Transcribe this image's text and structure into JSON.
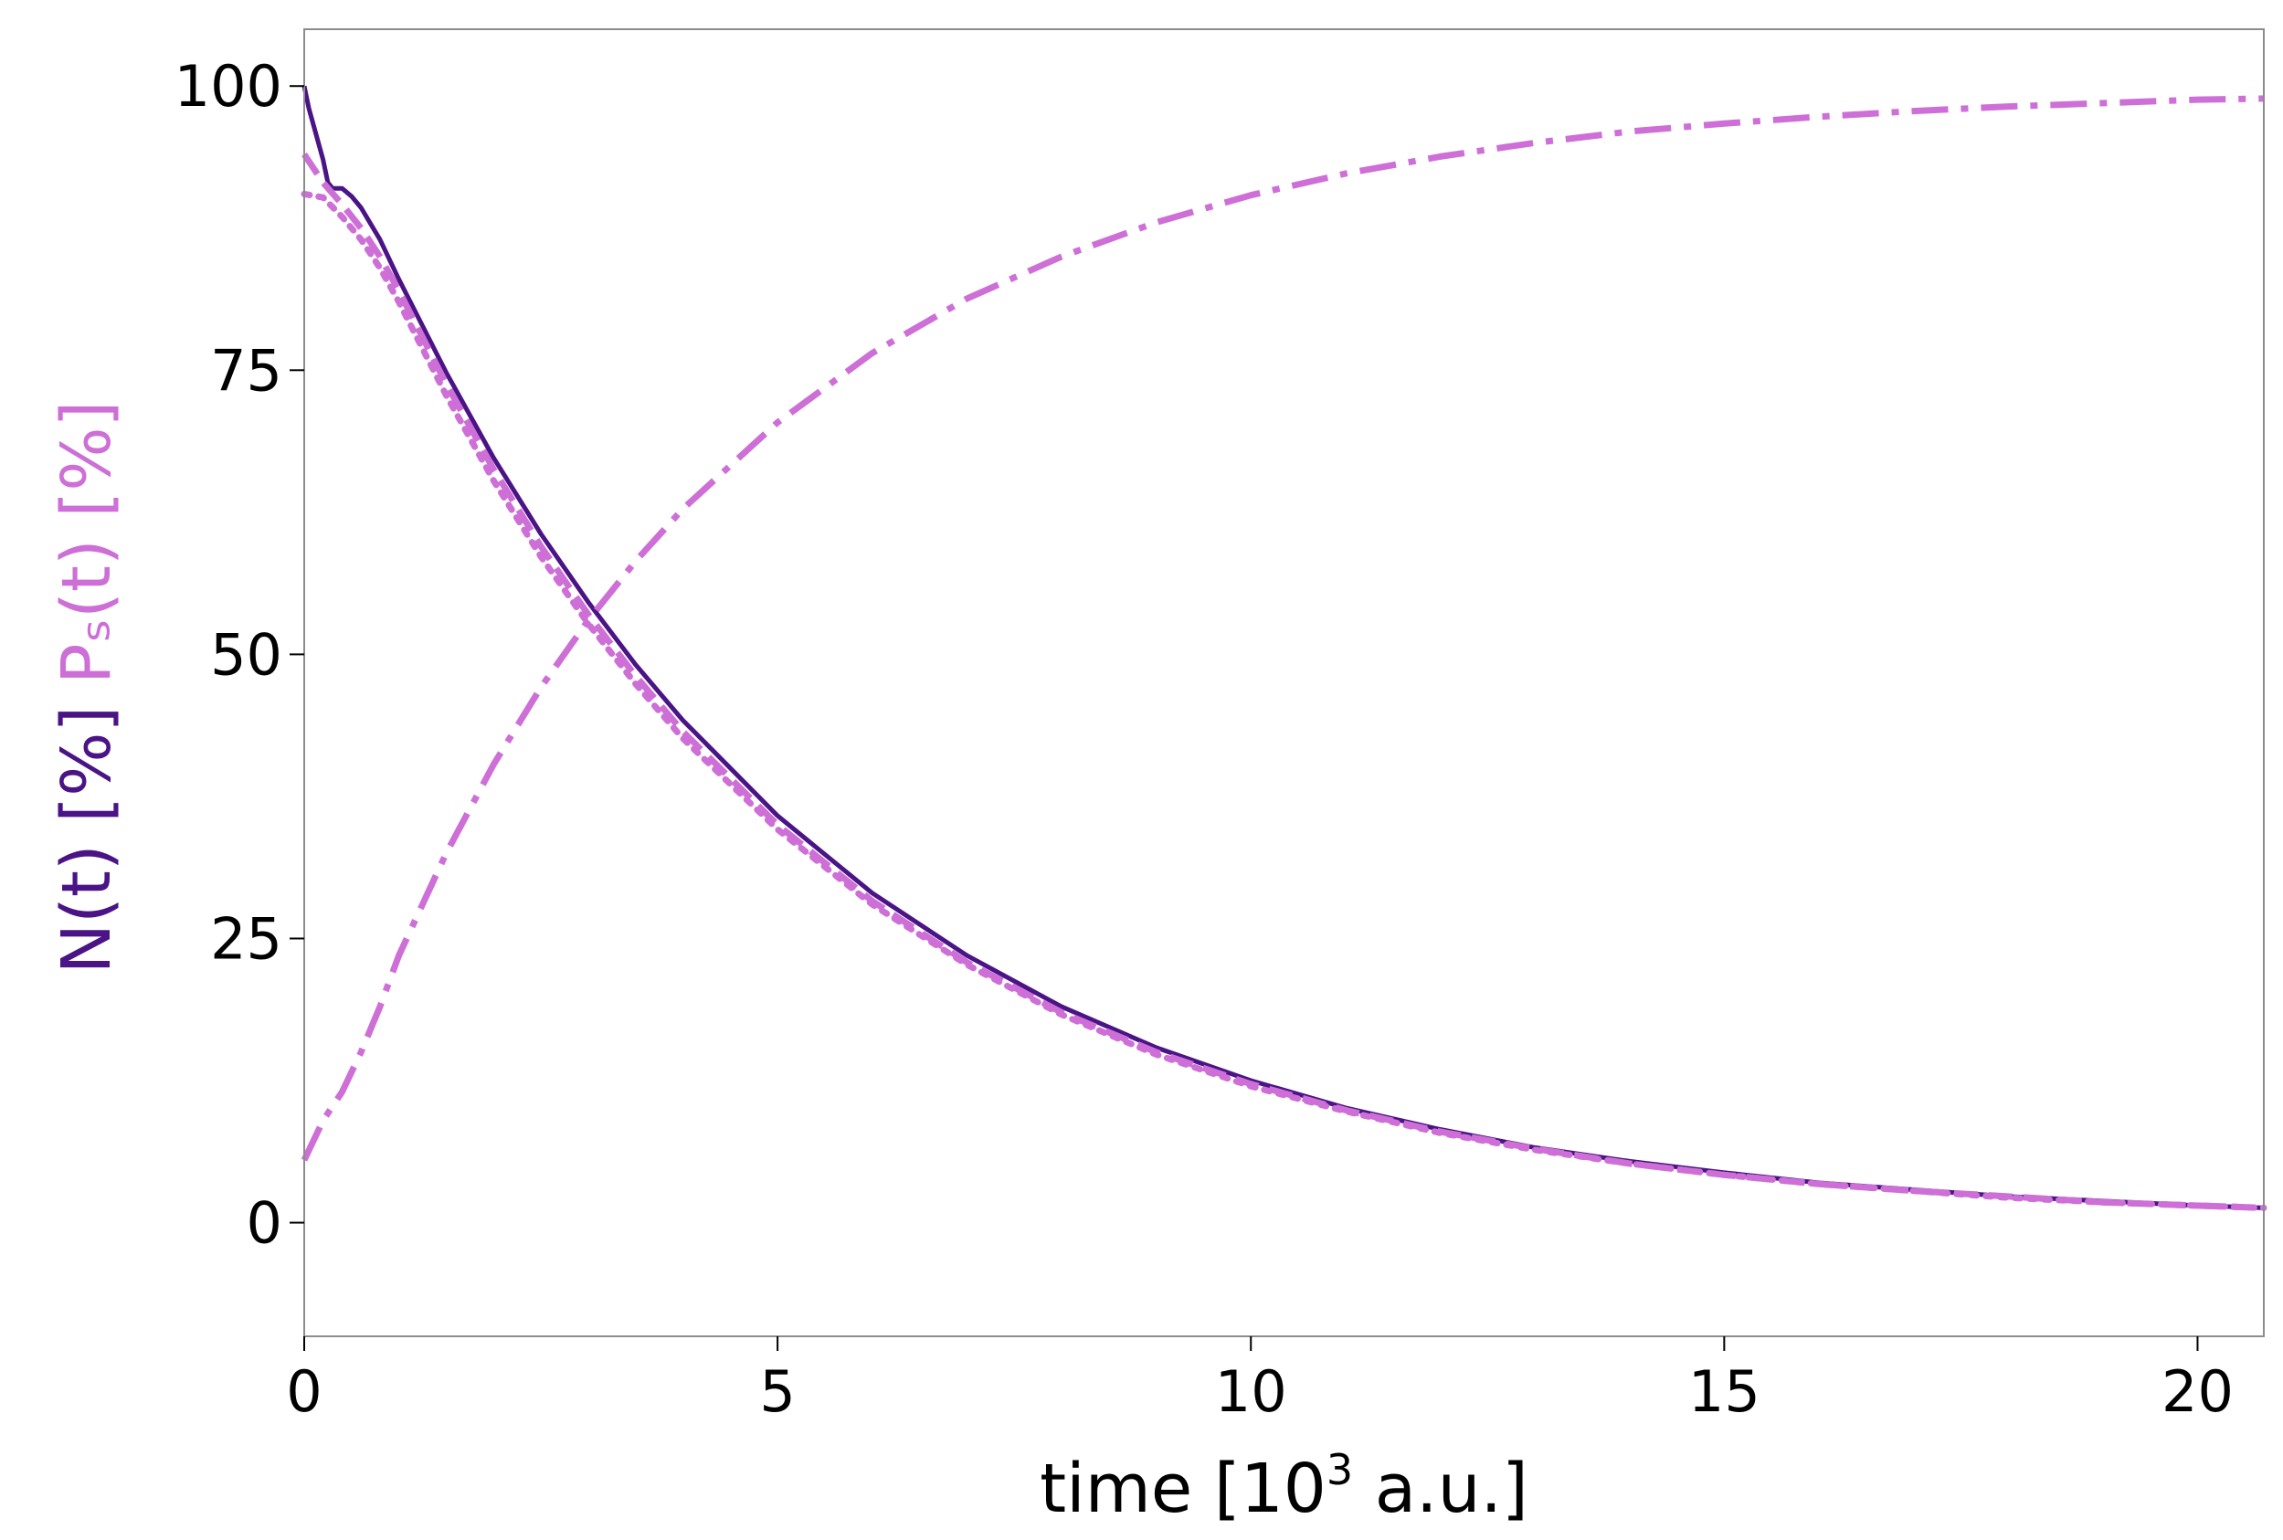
{
  "chart_data": {
    "type": "line",
    "xlabel": {
      "prefix": "time [10",
      "sup": "3",
      "suffix": " a.u.]"
    },
    "ylabel": {
      "n_part": "N(t) [%]",
      "p_part": "Pₛ(t) [%]",
      "n_color": "#4a1486",
      "p_color": "#cd6fd6"
    },
    "xlim": [
      0,
      20.7
    ],
    "ylim": [
      -10,
      105
    ],
    "xticks": [
      0,
      5,
      10,
      15,
      20
    ],
    "yticks": [
      0,
      25,
      50,
      75,
      100
    ],
    "grid": false,
    "series": [
      {
        "key": "N_total",
        "color": "#4a1486",
        "style": "solid",
        "x": [
          0,
          0.05,
          0.1,
          0.2,
          0.25,
          0.3,
          0.4,
          0.5,
          0.6,
          0.8,
          1.0,
          1.5,
          2.0,
          2.5,
          3.0,
          3.5,
          4.0,
          5.0,
          6.0,
          7.0,
          8.0,
          9.0,
          10.0,
          11.0,
          12.0,
          13.0,
          14.0,
          15.0,
          16.0,
          17.0,
          18.0,
          19.0,
          20.0,
          20.7
        ],
        "y": [
          100,
          98,
          96.5,
          93.5,
          91.5,
          91.0,
          91.0,
          90.3,
          89.3,
          86.5,
          83.0,
          74.8,
          67.3,
          60.6,
          54.6,
          49.1,
          44.2,
          35.8,
          29.0,
          23.5,
          19.0,
          15.4,
          12.5,
          10.1,
          8.2,
          6.6,
          5.4,
          4.4,
          3.5,
          2.9,
          2.3,
          1.9,
          1.5,
          1.3
        ]
      },
      {
        "key": "N_dashed",
        "color": "#cd6fd6",
        "style": "dashed",
        "x": [
          0,
          0.2,
          0.4,
          0.6,
          0.8,
          1.0,
          1.5,
          2.0,
          2.5,
          3.0,
          3.5,
          4.0,
          5.0,
          6.0,
          7.0,
          8.0,
          9.0,
          10.0,
          11.0,
          12.0,
          13.0,
          14.0,
          15.0,
          16.0,
          17.0,
          18.0,
          19.0,
          20.0,
          20.7
        ],
        "y": [
          94,
          91.5,
          89.6,
          87.5,
          85.0,
          82.0,
          73.8,
          66.3,
          59.5,
          53.5,
          48.1,
          43.2,
          35.0,
          28.3,
          22.9,
          18.5,
          15.0,
          12.2,
          9.9,
          8.0,
          6.5,
          5.2,
          4.2,
          3.4,
          2.8,
          2.3,
          1.8,
          1.5,
          1.3
        ]
      },
      {
        "key": "N_dotted",
        "color": "#cd6fd6",
        "style": "dotted",
        "x": [
          0,
          0.2,
          0.4,
          0.6,
          0.8,
          1.0,
          1.5,
          2.0,
          2.5,
          3.0,
          3.5,
          4.0,
          5.0,
          6.0,
          7.0,
          8.0,
          9.0,
          10.0,
          11.0,
          12.0,
          13.0,
          14.0,
          15.0,
          16.0,
          17.0,
          18.0,
          19.0,
          20.0,
          20.7
        ],
        "y": [
          90.5,
          90.2,
          88.5,
          86.5,
          84.0,
          81.0,
          72.8,
          65.3,
          58.6,
          52.7,
          47.4,
          42.6,
          34.6,
          28.0,
          22.7,
          18.3,
          14.8,
          12.0,
          9.8,
          7.9,
          6.4,
          5.2,
          4.2,
          3.4,
          2.8,
          2.2,
          1.8,
          1.5,
          1.3
        ]
      },
      {
        "key": "P_s",
        "color": "#cd6fd6",
        "style": "dashdot",
        "x": [
          0,
          0.2,
          0.4,
          0.6,
          0.8,
          1.0,
          1.5,
          2.0,
          2.5,
          3.0,
          3.5,
          4.0,
          5.0,
          6.0,
          7.0,
          8.0,
          9.0,
          10.0,
          11.0,
          12.0,
          13.0,
          14.0,
          15.0,
          16.0,
          17.0,
          18.0,
          19.0,
          20.0,
          20.7
        ],
        "y": [
          5.5,
          9.0,
          11.5,
          15.0,
          19.0,
          23.5,
          32.5,
          40.3,
          47.1,
          53.0,
          58.2,
          62.8,
          70.4,
          76.5,
          81.3,
          85.0,
          88.0,
          90.4,
          92.3,
          93.8,
          95.0,
          96.0,
          96.7,
          97.3,
          97.8,
          98.2,
          98.5,
          98.8,
          98.9
        ]
      }
    ]
  }
}
